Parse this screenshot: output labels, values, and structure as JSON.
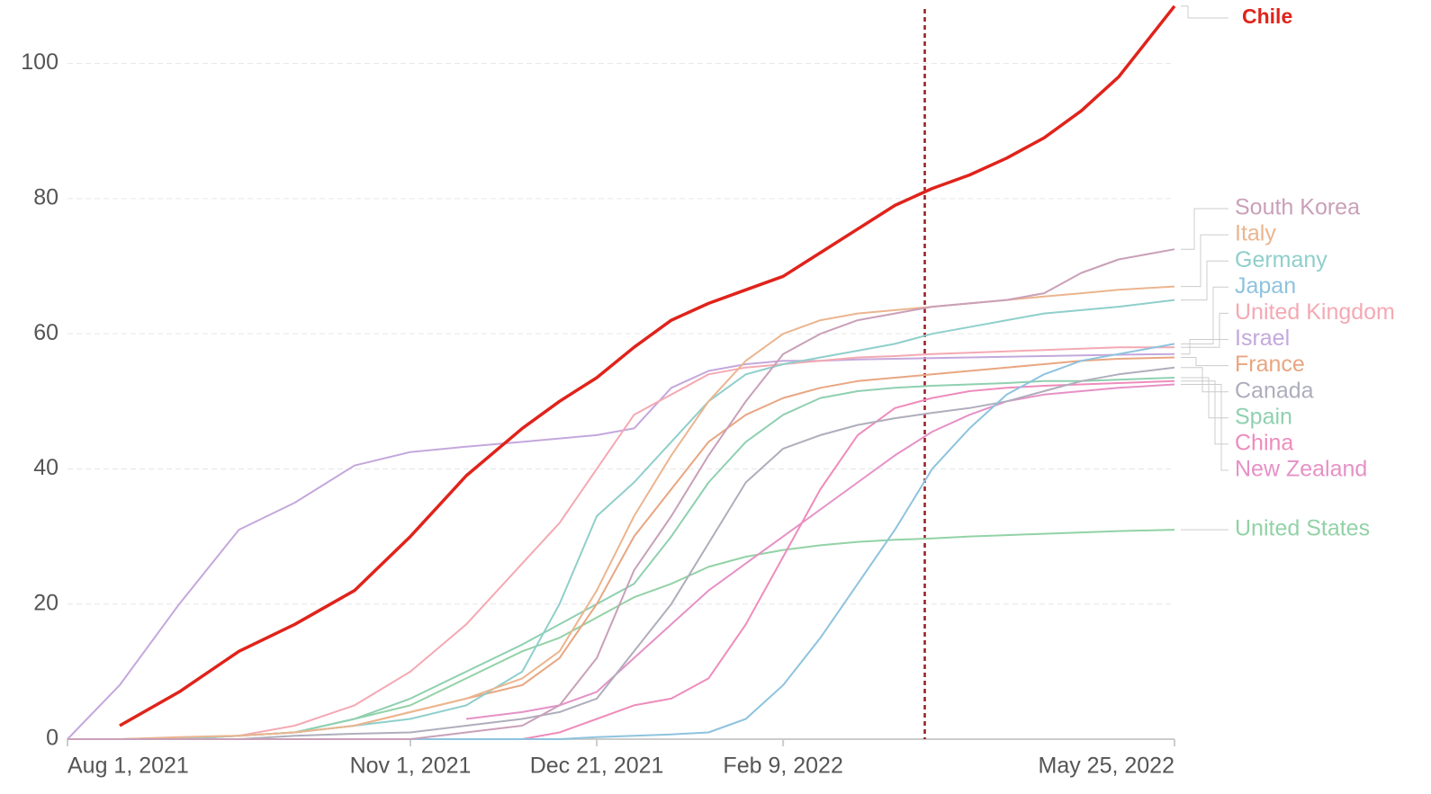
{
  "chart_data": {
    "type": "line",
    "x": [
      "2021-08-01",
      "2021-08-15",
      "2021-08-31",
      "2021-09-16",
      "2021-10-01",
      "2021-10-17",
      "2021-11-01",
      "2021-11-16",
      "2021-12-01",
      "2021-12-11",
      "2021-12-21",
      "2021-12-31",
      "2022-01-10",
      "2022-01-20",
      "2022-01-30",
      "2022-02-09",
      "2022-02-19",
      "2022-03-01",
      "2022-03-11",
      "2022-03-21",
      "2022-03-31",
      "2022-04-10",
      "2022-04-20",
      "2022-04-30",
      "2022-05-10",
      "2022-05-25"
    ],
    "xlim": [
      "2021-08-01",
      "2022-05-25"
    ],
    "xticks": [
      {
        "value": "2021-08-01",
        "label": "Aug 1, 2021"
      },
      {
        "value": "2021-11-01",
        "label": "Nov 1, 2021"
      },
      {
        "value": "2021-12-21",
        "label": "Dec 21, 2021"
      },
      {
        "value": "2022-02-09",
        "label": "Feb 9, 2022"
      },
      {
        "value": "2022-05-25",
        "label": "May 25, 2022"
      }
    ],
    "ylim": [
      0,
      108.6
    ],
    "yticks": [
      0,
      20,
      40,
      60,
      80,
      100
    ],
    "grid": true,
    "vline": "2022-03-19",
    "series": [
      {
        "name": "Chile",
        "color": "#e0231b",
        "values": [
          null,
          2,
          7,
          13,
          17,
          22,
          30,
          39,
          46,
          50,
          53.5,
          58,
          62,
          64.5,
          66.5,
          68.5,
          72,
          75.5,
          79,
          81.5,
          83.5,
          86,
          89,
          93,
          98,
          108.5
        ]
      },
      {
        "name": "South Korea",
        "color": "#c9a0b8",
        "values": [
          0,
          0,
          0,
          0,
          0,
          0,
          0,
          1,
          2,
          5,
          12,
          25,
          33,
          42,
          50,
          57,
          60,
          62,
          63,
          64,
          64.5,
          65,
          66,
          69,
          71,
          72.5
        ]
      },
      {
        "name": "Italy",
        "color": "#ebb58f",
        "values": [
          0,
          0,
          0.3,
          0.5,
          1,
          2,
          4,
          6,
          9,
          13,
          22,
          33,
          42,
          50,
          56,
          60,
          62,
          63,
          63.5,
          64,
          64.5,
          65,
          65.5,
          66,
          66.5,
          67
        ]
      },
      {
        "name": "Germany",
        "color": "#8fcfcb",
        "values": [
          0,
          0,
          0,
          0.5,
          1,
          2,
          3,
          5,
          10,
          20,
          33,
          38,
          44,
          50,
          54,
          55.5,
          56.5,
          57.5,
          58.5,
          60,
          61,
          62,
          63,
          63.5,
          64,
          65
        ]
      },
      {
        "name": "Japan",
        "color": "#8ec3de",
        "values": [
          0,
          0,
          0,
          0,
          0,
          0,
          0,
          0,
          0,
          0,
          0.3,
          0.5,
          0.7,
          1,
          3,
          8,
          15,
          23,
          31,
          40,
          46,
          51,
          54,
          56,
          57,
          58.5
        ]
      },
      {
        "name": "United Kingdom",
        "color": "#f4a9b3",
        "values": [
          0,
          0,
          0,
          0.5,
          2,
          5,
          10,
          17,
          26,
          32,
          40,
          48,
          51,
          54,
          55,
          55.5,
          56,
          56.5,
          56.7,
          57,
          57.2,
          57.4,
          57.6,
          57.8,
          58,
          58
        ]
      },
      {
        "name": "Israel",
        "color": "#c4a8dc",
        "values": [
          0,
          8,
          20,
          31,
          35,
          40.5,
          42.5,
          43.3,
          44,
          44.5,
          45,
          46,
          52,
          54.5,
          55.5,
          56,
          56,
          56.2,
          56.3,
          56.4,
          56.5,
          56.6,
          56.7,
          56.8,
          56.9,
          57
        ]
      },
      {
        "name": "France",
        "color": "#e8a681",
        "values": [
          0,
          0,
          0,
          0.5,
          1,
          2,
          4,
          6,
          8,
          12,
          20,
          30,
          37,
          44,
          48,
          50.5,
          52,
          53,
          53.5,
          54,
          54.5,
          55,
          55.5,
          56,
          56.3,
          56.5
        ]
      },
      {
        "name": "Canada",
        "color": "#aeaebc",
        "values": [
          0,
          0,
          0,
          0,
          0.5,
          0.8,
          1,
          2,
          3,
          4,
          6,
          13,
          20,
          29,
          38,
          43,
          45,
          46.5,
          47.5,
          48.3,
          49,
          50,
          51.5,
          53,
          54,
          55
        ]
      },
      {
        "name": "Spain",
        "color": "#8fd0b0",
        "values": [
          0,
          0,
          0,
          0.5,
          1,
          3,
          6,
          10,
          14,
          17,
          20,
          23,
          30,
          38,
          44,
          48,
          50.5,
          51.5,
          52,
          52.3,
          52.5,
          52.7,
          53,
          53,
          53.2,
          53.5
        ]
      },
      {
        "name": "China",
        "color": "#ee8cbc",
        "values": [
          0,
          0,
          0,
          0,
          0,
          0,
          0,
          0,
          0,
          1,
          3,
          5,
          6,
          9,
          17,
          27,
          37,
          45,
          49,
          50.5,
          51.5,
          52,
          52.3,
          52.5,
          52.7,
          53
        ]
      },
      {
        "name": "New Zealand",
        "color": "#e591c6",
        "values": [
          null,
          null,
          null,
          null,
          null,
          null,
          null,
          3,
          4,
          5,
          7,
          12,
          17,
          22,
          26,
          30,
          34,
          38,
          42,
          45.5,
          48,
          50,
          51,
          51.5,
          52,
          52.5
        ]
      },
      {
        "name": "United States",
        "color": "#93d2a6",
        "values": [
          0,
          0,
          0.2,
          0.5,
          1,
          3,
          5,
          9,
          13,
          15,
          18,
          21,
          23,
          25.5,
          27,
          28,
          28.7,
          29.2,
          29.5,
          29.7,
          30,
          30.2,
          30.4,
          30.6,
          30.8,
          31
        ]
      }
    ]
  }
}
